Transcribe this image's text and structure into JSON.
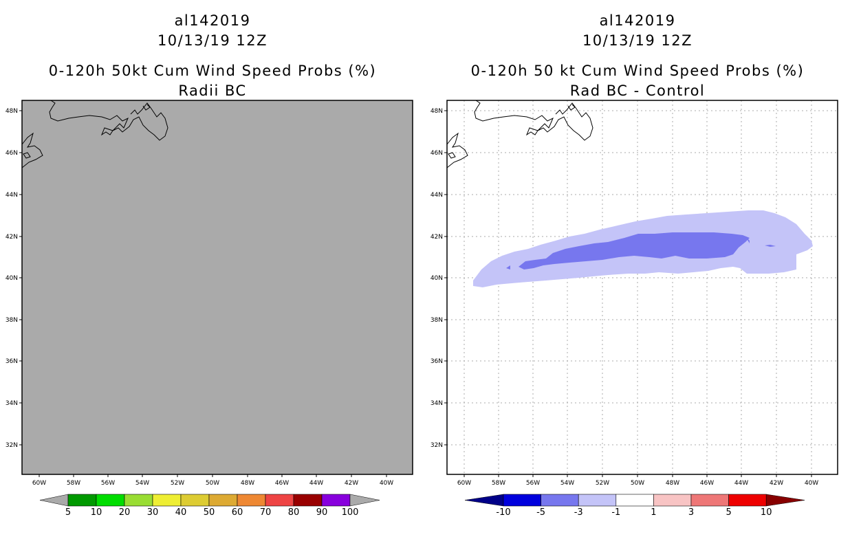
{
  "panels": [
    {
      "storm_id": "al142019",
      "datetime": "10/13/19 12Z",
      "title": "0-120h 50kt Cum Wind Speed Probs (%)",
      "subtitle": "Radii BC",
      "lat_labels": [
        "48N",
        "46N",
        "44N",
        "42N",
        "40N",
        "38N",
        "36N",
        "34N",
        "32N"
      ],
      "lon_labels": [
        "60W",
        "58W",
        "56W",
        "54W",
        "52W",
        "50W",
        "48W",
        "46W",
        "44W",
        "42W",
        "40W"
      ],
      "colorbar": {
        "colors": [
          "#009900",
          "#00dd00",
          "#99dd33",
          "#eeee33",
          "#ddcc33",
          "#ddaa33",
          "#ee8833",
          "#ee4444",
          "#990000",
          "#8800dd"
        ],
        "labels": [
          "5",
          "10",
          "20",
          "30",
          "40",
          "50",
          "60",
          "70",
          "80",
          "90",
          "100"
        ]
      }
    },
    {
      "storm_id": "al142019",
      "datetime": "10/13/19 12Z",
      "title": "0-120h 50 kt Cum Wind Speed Probs (%)",
      "subtitle": "Rad BC - Control",
      "lat_labels": [
        "48N",
        "46N",
        "44N",
        "42N",
        "40N",
        "38N",
        "36N",
        "34N",
        "32N"
      ],
      "lon_labels": [
        "60W",
        "58W",
        "56W",
        "54W",
        "52W",
        "50W",
        "48W",
        "46W",
        "44W",
        "42W",
        "40W"
      ],
      "colorbar": {
        "colors": [
          "#0000dd",
          "#7777ee",
          "#c4c4f8",
          "#ffffff",
          "#f8c4c4",
          "#ee7777",
          "#ee0000"
        ],
        "end_colors": [
          "#000088",
          "#880000"
        ],
        "labels": [
          "-10",
          "-5",
          "-3",
          "-1",
          "1",
          "3",
          "5",
          "10"
        ]
      }
    }
  ]
}
